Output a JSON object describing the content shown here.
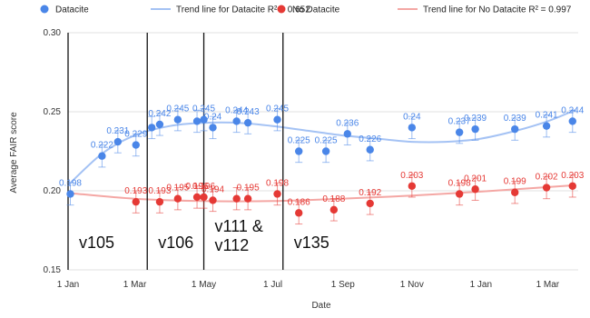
{
  "chart_data": {
    "type": "scatter",
    "xlabel": "Date",
    "ylabel": "Average FAIR score",
    "ylim": [
      0.15,
      0.3
    ],
    "yticks": [
      "0.15",
      "0.20",
      "0.25",
      "0.30"
    ],
    "xlim": [
      "2021-01-01",
      "2022-03-28"
    ],
    "xticks": [
      {
        "label": "1 Jan",
        "date": "2021-01-01"
      },
      {
        "label": "1 Mar",
        "date": "2021-03-01"
      },
      {
        "label": "1 May",
        "date": "2021-05-01"
      },
      {
        "label": "1 Jul",
        "date": "2021-07-01"
      },
      {
        "label": "1 Sep",
        "date": "2021-09-01"
      },
      {
        "label": "1 Nov",
        "date": "2021-11-01"
      },
      {
        "label": "1 Jan",
        "date": "2022-01-01"
      },
      {
        "label": "1 Mar",
        "date": "2022-03-01"
      }
    ],
    "legend_position": "top",
    "legend": [
      {
        "label": "Datacite",
        "kind": "marker",
        "color": "#4a86e8"
      },
      {
        "label": "Trend line for Datacite R² = 0.652",
        "kind": "line",
        "color": "#a4c2f4"
      },
      {
        "label": "No Datacite",
        "kind": "marker",
        "color": "#e53935"
      },
      {
        "label": "Trend line for No Datacite R² = 0.997",
        "kind": "line",
        "color": "#f4a7a4"
      }
    ],
    "series": [
      {
        "name": "Datacite",
        "color": "#4a86e8",
        "error": 0.007,
        "points": [
          {
            "x": "2021-01-03",
            "y": 0.198,
            "label": "0.198"
          },
          {
            "x": "2021-01-31",
            "y": 0.222,
            "label": "0.222"
          },
          {
            "x": "2021-02-14",
            "y": 0.231,
            "label": "0.231"
          },
          {
            "x": "2021-03-02",
            "y": 0.229,
            "label": "0.229"
          },
          {
            "x": "2021-03-16",
            "y": 0.24,
            "label": ""
          },
          {
            "x": "2021-03-23",
            "y": 0.242,
            "label": "0.242"
          },
          {
            "x": "2021-04-08",
            "y": 0.245,
            "label": "0.245"
          },
          {
            "x": "2021-04-25",
            "y": 0.244,
            "label": ""
          },
          {
            "x": "2021-05-01",
            "y": 0.245,
            "label": "0.245"
          },
          {
            "x": "2021-05-09",
            "y": 0.24,
            "label": "0.24"
          },
          {
            "x": "2021-05-30",
            "y": 0.244,
            "label": "0.244"
          },
          {
            "x": "2021-06-09",
            "y": 0.243,
            "label": "0.243"
          },
          {
            "x": "2021-07-05",
            "y": 0.245,
            "label": "0.245"
          },
          {
            "x": "2021-07-24",
            "y": 0.225,
            "label": "0.225"
          },
          {
            "x": "2021-08-17",
            "y": 0.225,
            "label": "0.225"
          },
          {
            "x": "2021-09-05",
            "y": 0.236,
            "label": "0.236"
          },
          {
            "x": "2021-09-25",
            "y": 0.226,
            "label": "0.226"
          },
          {
            "x": "2021-11-01",
            "y": 0.24,
            "label": "0.24"
          },
          {
            "x": "2021-12-13",
            "y": 0.237,
            "label": "0.237"
          },
          {
            "x": "2021-12-27",
            "y": 0.239,
            "label": "0.239"
          },
          {
            "x": "2022-01-31",
            "y": 0.239,
            "label": "0.239"
          },
          {
            "x": "2022-02-28",
            "y": 0.241,
            "label": "0.241"
          },
          {
            "x": "2022-03-23",
            "y": 0.244,
            "label": "0.244"
          }
        ]
      },
      {
        "name": "No Datacite",
        "color": "#e53935",
        "error": 0.007,
        "points": [
          {
            "x": "2021-03-02",
            "y": 0.193,
            "label": "0.193"
          },
          {
            "x": "2021-03-23",
            "y": 0.193,
            "label": "0.193"
          },
          {
            "x": "2021-04-08",
            "y": 0.195,
            "label": "0.195"
          },
          {
            "x": "2021-04-25",
            "y": 0.196,
            "label": "0.196"
          },
          {
            "x": "2021-05-01",
            "y": 0.196,
            "label": "0.196"
          },
          {
            "x": "2021-05-09",
            "y": 0.194,
            "label": "0.194"
          },
          {
            "x": "2021-05-30",
            "y": 0.195,
            "label": ""
          },
          {
            "x": "2021-06-09",
            "y": 0.195,
            "label": "0.195"
          },
          {
            "x": "2021-07-05",
            "y": 0.198,
            "label": "0.198"
          },
          {
            "x": "2021-07-24",
            "y": 0.186,
            "label": "0.186"
          },
          {
            "x": "2021-08-24",
            "y": 0.188,
            "label": "0.188"
          },
          {
            "x": "2021-09-25",
            "y": 0.192,
            "label": "0.192"
          },
          {
            "x": "2021-11-01",
            "y": 0.203,
            "label": "0.203"
          },
          {
            "x": "2021-12-13",
            "y": 0.198,
            "label": "0.198"
          },
          {
            "x": "2021-12-27",
            "y": 0.201,
            "label": "0.201"
          },
          {
            "x": "2022-01-31",
            "y": 0.199,
            "label": "0.199"
          },
          {
            "x": "2022-02-28",
            "y": 0.202,
            "label": "0.202"
          },
          {
            "x": "2022-03-23",
            "y": 0.203,
            "label": "0.203"
          }
        ]
      }
    ],
    "trendlines": [
      {
        "name": "Trend line for Datacite R² = 0.652",
        "color": "#a4c2f4",
        "points": [
          {
            "x": "2021-01-03",
            "y": 0.205
          },
          {
            "x": "2021-02-01",
            "y": 0.224
          },
          {
            "x": "2021-03-01",
            "y": 0.235
          },
          {
            "x": "2021-04-01",
            "y": 0.241
          },
          {
            "x": "2021-05-01",
            "y": 0.243
          },
          {
            "x": "2021-06-01",
            "y": 0.243
          },
          {
            "x": "2021-07-01",
            "y": 0.241
          },
          {
            "x": "2021-08-01",
            "y": 0.238
          },
          {
            "x": "2021-09-01",
            "y": 0.235
          },
          {
            "x": "2021-10-01",
            "y": 0.233
          },
          {
            "x": "2021-11-01",
            "y": 0.231
          },
          {
            "x": "2021-12-01",
            "y": 0.231
          },
          {
            "x": "2022-01-01",
            "y": 0.233
          },
          {
            "x": "2022-02-01",
            "y": 0.238
          },
          {
            "x": "2022-03-01",
            "y": 0.244
          },
          {
            "x": "2022-03-25",
            "y": 0.251
          }
        ]
      },
      {
        "name": "Trend line for No Datacite R² = 0.997",
        "color": "#f4a7a4",
        "points": [
          {
            "x": "2021-01-03",
            "y": 0.1985
          },
          {
            "x": "2021-03-01",
            "y": 0.195
          },
          {
            "x": "2021-05-01",
            "y": 0.1935
          },
          {
            "x": "2021-07-01",
            "y": 0.1935
          },
          {
            "x": "2021-09-01",
            "y": 0.195
          },
          {
            "x": "2021-11-01",
            "y": 0.197
          },
          {
            "x": "2022-01-01",
            "y": 0.1995
          },
          {
            "x": "2022-03-25",
            "y": 0.2035
          }
        ]
      }
    ],
    "annotations": {
      "markers": [
        {
          "x": "2021-01-01",
          "label": "v105"
        },
        {
          "x": "2021-03-12",
          "label": "v106"
        },
        {
          "x": "2021-05-01",
          "label": "v111 &\nv112"
        },
        {
          "x": "2021-07-10",
          "label": "v135"
        }
      ]
    }
  }
}
